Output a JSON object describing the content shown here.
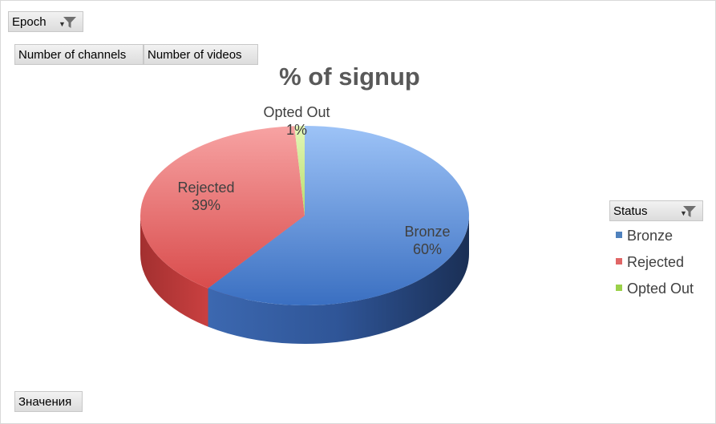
{
  "pivot": {
    "filter_field": "Epoch",
    "value_fields": [
      "Number of channels",
      "Number of videos"
    ],
    "legend_field": "Status",
    "row_field": "Значения"
  },
  "chart_data": {
    "type": "pie",
    "title": "% of signup",
    "labels": [
      "Bronze",
      "Rejected",
      "Opted Out"
    ],
    "values": [
      60,
      39,
      1
    ],
    "data_labels": [
      "60%",
      "39%",
      "1%"
    ],
    "colors": [
      "#4f81bd",
      "#e06666",
      "#c3e88a"
    ],
    "legend_position": "right",
    "style": "3d"
  }
}
